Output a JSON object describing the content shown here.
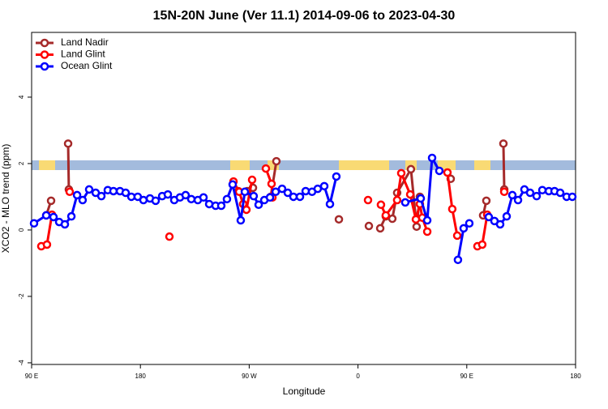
{
  "chart_data": {
    "type": "line",
    "title": "15N-20N June (Ver 11.1)   2014-09-06 to 2023-04-30",
    "x_label": "Longitude",
    "y_label": "XCO2 - MLO trend (ppm)",
    "xlim": [
      90,
      540
    ],
    "ylim": [
      -4.05,
      5.95
    ],
    "xticks": [
      {
        "value": 90,
        "label": "90 E"
      },
      180,
      {
        "value": 270,
        "label": "90 W"
      },
      {
        "value": 360,
        "label": "0"
      },
      {
        "value": 450,
        "label": "90 E"
      },
      {
        "value": 540,
        "label": "180"
      }
    ],
    "yticks": [
      -4,
      -2,
      0,
      2,
      4
    ],
    "legend": "top-left",
    "series": [
      {
        "name": "Land Nadir",
        "color": "#a52a2a",
        "x": [
          102.1,
          106.1,
          null,
          120.2,
          120.8,
          null,
          261.0,
          268.4,
          273.1,
          null,
          287.8,
          292.5,
          null,
          344.2,
          null,
          369.0,
          null,
          378.4,
          383.0,
          388.4,
          392.4,
          403.8,
          408.5,
          411.2,
          null,
          436.7,
          null,
          463.5,
          466.2,
          null,
          480.3,
          481.0
        ],
        "values": [
          0.44,
          0.88,
          null,
          2.6,
          1.22,
          null,
          1.17,
          1.17,
          1.27,
          null,
          1.0,
          2.07,
          null,
          0.32,
          null,
          0.12,
          null,
          0.05,
          0.41,
          0.34,
          1.12,
          1.83,
          0.1,
          1.0,
          null,
          1.54,
          null,
          0.44,
          0.88,
          null,
          2.6,
          1.22
        ]
      },
      {
        "name": "Land Glint",
        "color": "#ff0000",
        "x": [
          98.0,
          102.7,
          106.8,
          null,
          121.5,
          null,
          204.0,
          null,
          257.0,
          261.7,
          265.0,
          267.7,
          272.4,
          null,
          283.8,
          288.5,
          289.2,
          null,
          368.3,
          null,
          379.0,
          383.0,
          392.4,
          395.8,
          403.2,
          407.9,
          411.2,
          413.2,
          417.3,
          null,
          434.0,
          438.0,
          442.1,
          null,
          458.8,
          462.8,
          466.9,
          null,
          481.0
        ],
        "values": [
          -0.49,
          -0.44,
          0.46,
          null,
          1.15,
          null,
          -0.2,
          null,
          1.46,
          1.15,
          0.78,
          0.61,
          1.51,
          null,
          1.85,
          1.39,
          0.98,
          null,
          0.9,
          null,
          0.76,
          0.44,
          0.9,
          1.71,
          1.07,
          0.32,
          0.78,
          0.37,
          -0.05,
          null,
          1.73,
          0.63,
          -0.17,
          null,
          -0.49,
          -0.44,
          0.46,
          null,
          1.15
        ]
      },
      {
        "name": "Ocean Glint",
        "color": "#0000ff",
        "x": [
          92.0,
          102.1,
          108.1,
          112.8,
          117.5,
          122.9,
          127.6,
          132.2,
          137.6,
          143.0,
          147.7,
          153.0,
          157.7,
          163.1,
          167.8,
          172.5,
          177.8,
          182.5,
          187.9,
          192.6,
          198.0,
          202.7,
          208.0,
          212.7,
          217.4,
          222.1,
          227.5,
          232.2,
          236.9,
          242.2,
          246.9,
          251.6,
          256.3,
          263.0,
          266.4,
          273.7,
          277.8,
          282.5,
          287.2,
          291.9,
          297.2,
          301.9,
          306.6,
          312.0,
          316.7,
          322.0,
          326.7,
          332.1,
          336.8,
          342.1,
          null,
          399.1,
          411.9,
          417.3,
          421.3,
          427.3,
          null,
          442.7,
          447.4,
          452.1,
          null,
          468.2,
          472.9,
          477.6,
          483.0,
          487.7,
          492.4,
          497.7,
          502.4,
          507.8,
          512.5,
          517.9,
          522.6,
          527.3,
          532.6,
          537.3
        ],
        "values": [
          0.2,
          0.44,
          0.39,
          0.24,
          0.17,
          0.41,
          1.05,
          0.9,
          1.22,
          1.12,
          1.02,
          1.2,
          1.17,
          1.17,
          1.12,
          1.0,
          1.0,
          0.9,
          0.95,
          0.88,
          1.02,
          1.07,
          0.9,
          0.98,
          1.05,
          0.93,
          0.9,
          0.98,
          0.78,
          0.73,
          0.73,
          0.93,
          1.37,
          0.29,
          1.15,
          1.02,
          0.76,
          0.9,
          0.98,
          1.15,
          1.24,
          1.12,
          1.0,
          1.0,
          1.17,
          1.15,
          1.24,
          1.32,
          0.78,
          1.61,
          null,
          0.83,
          0.95,
          0.29,
          2.17,
          1.78,
          null,
          -0.9,
          0.05,
          0.2,
          null,
          0.39,
          0.27,
          0.17,
          0.41,
          1.05,
          0.9,
          1.22,
          1.12,
          1.02,
          1.2,
          1.17,
          1.17,
          1.12,
          1.0,
          1.0
        ]
      }
    ]
  }
}
